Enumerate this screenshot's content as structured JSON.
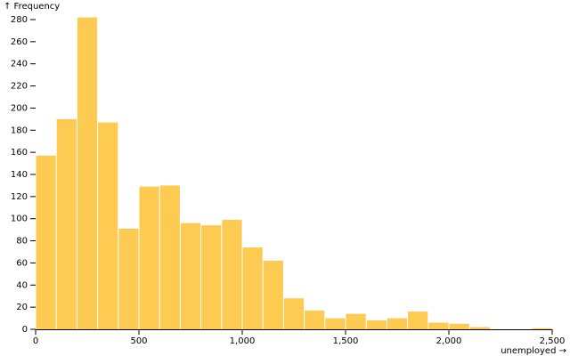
{
  "chart_data": {
    "type": "histogram",
    "y_label": "↑ Frequency",
    "x_label": "unemployed →",
    "bins": [
      0,
      100,
      200,
      300,
      400,
      500,
      600,
      700,
      800,
      900,
      1000,
      1100,
      1200,
      1300,
      1400,
      1500,
      1600,
      1700,
      1800,
      1900,
      2000,
      2100,
      2200,
      2300,
      2400,
      2500
    ],
    "values": [
      157,
      190,
      282,
      187,
      91,
      129,
      130,
      96,
      94,
      99,
      74,
      62,
      28,
      17,
      10,
      14,
      8,
      10,
      16,
      6,
      5,
      2,
      0,
      0,
      1
    ],
    "color": "#fdca52",
    "xlim": [
      0,
      2500
    ],
    "xticks": [
      0,
      500,
      {
        "value": 1000,
        "label": "1,000"
      },
      {
        "value": 1500,
        "label": "1,500"
      },
      {
        "value": 2000,
        "label": "2,000"
      },
      {
        "value": 2500,
        "label": "2,500"
      }
    ],
    "ylim": [
      0,
      280
    ],
    "yticks": [
      0,
      20,
      40,
      60,
      80,
      100,
      120,
      140,
      160,
      180,
      200,
      220,
      240,
      260,
      280
    ]
  }
}
